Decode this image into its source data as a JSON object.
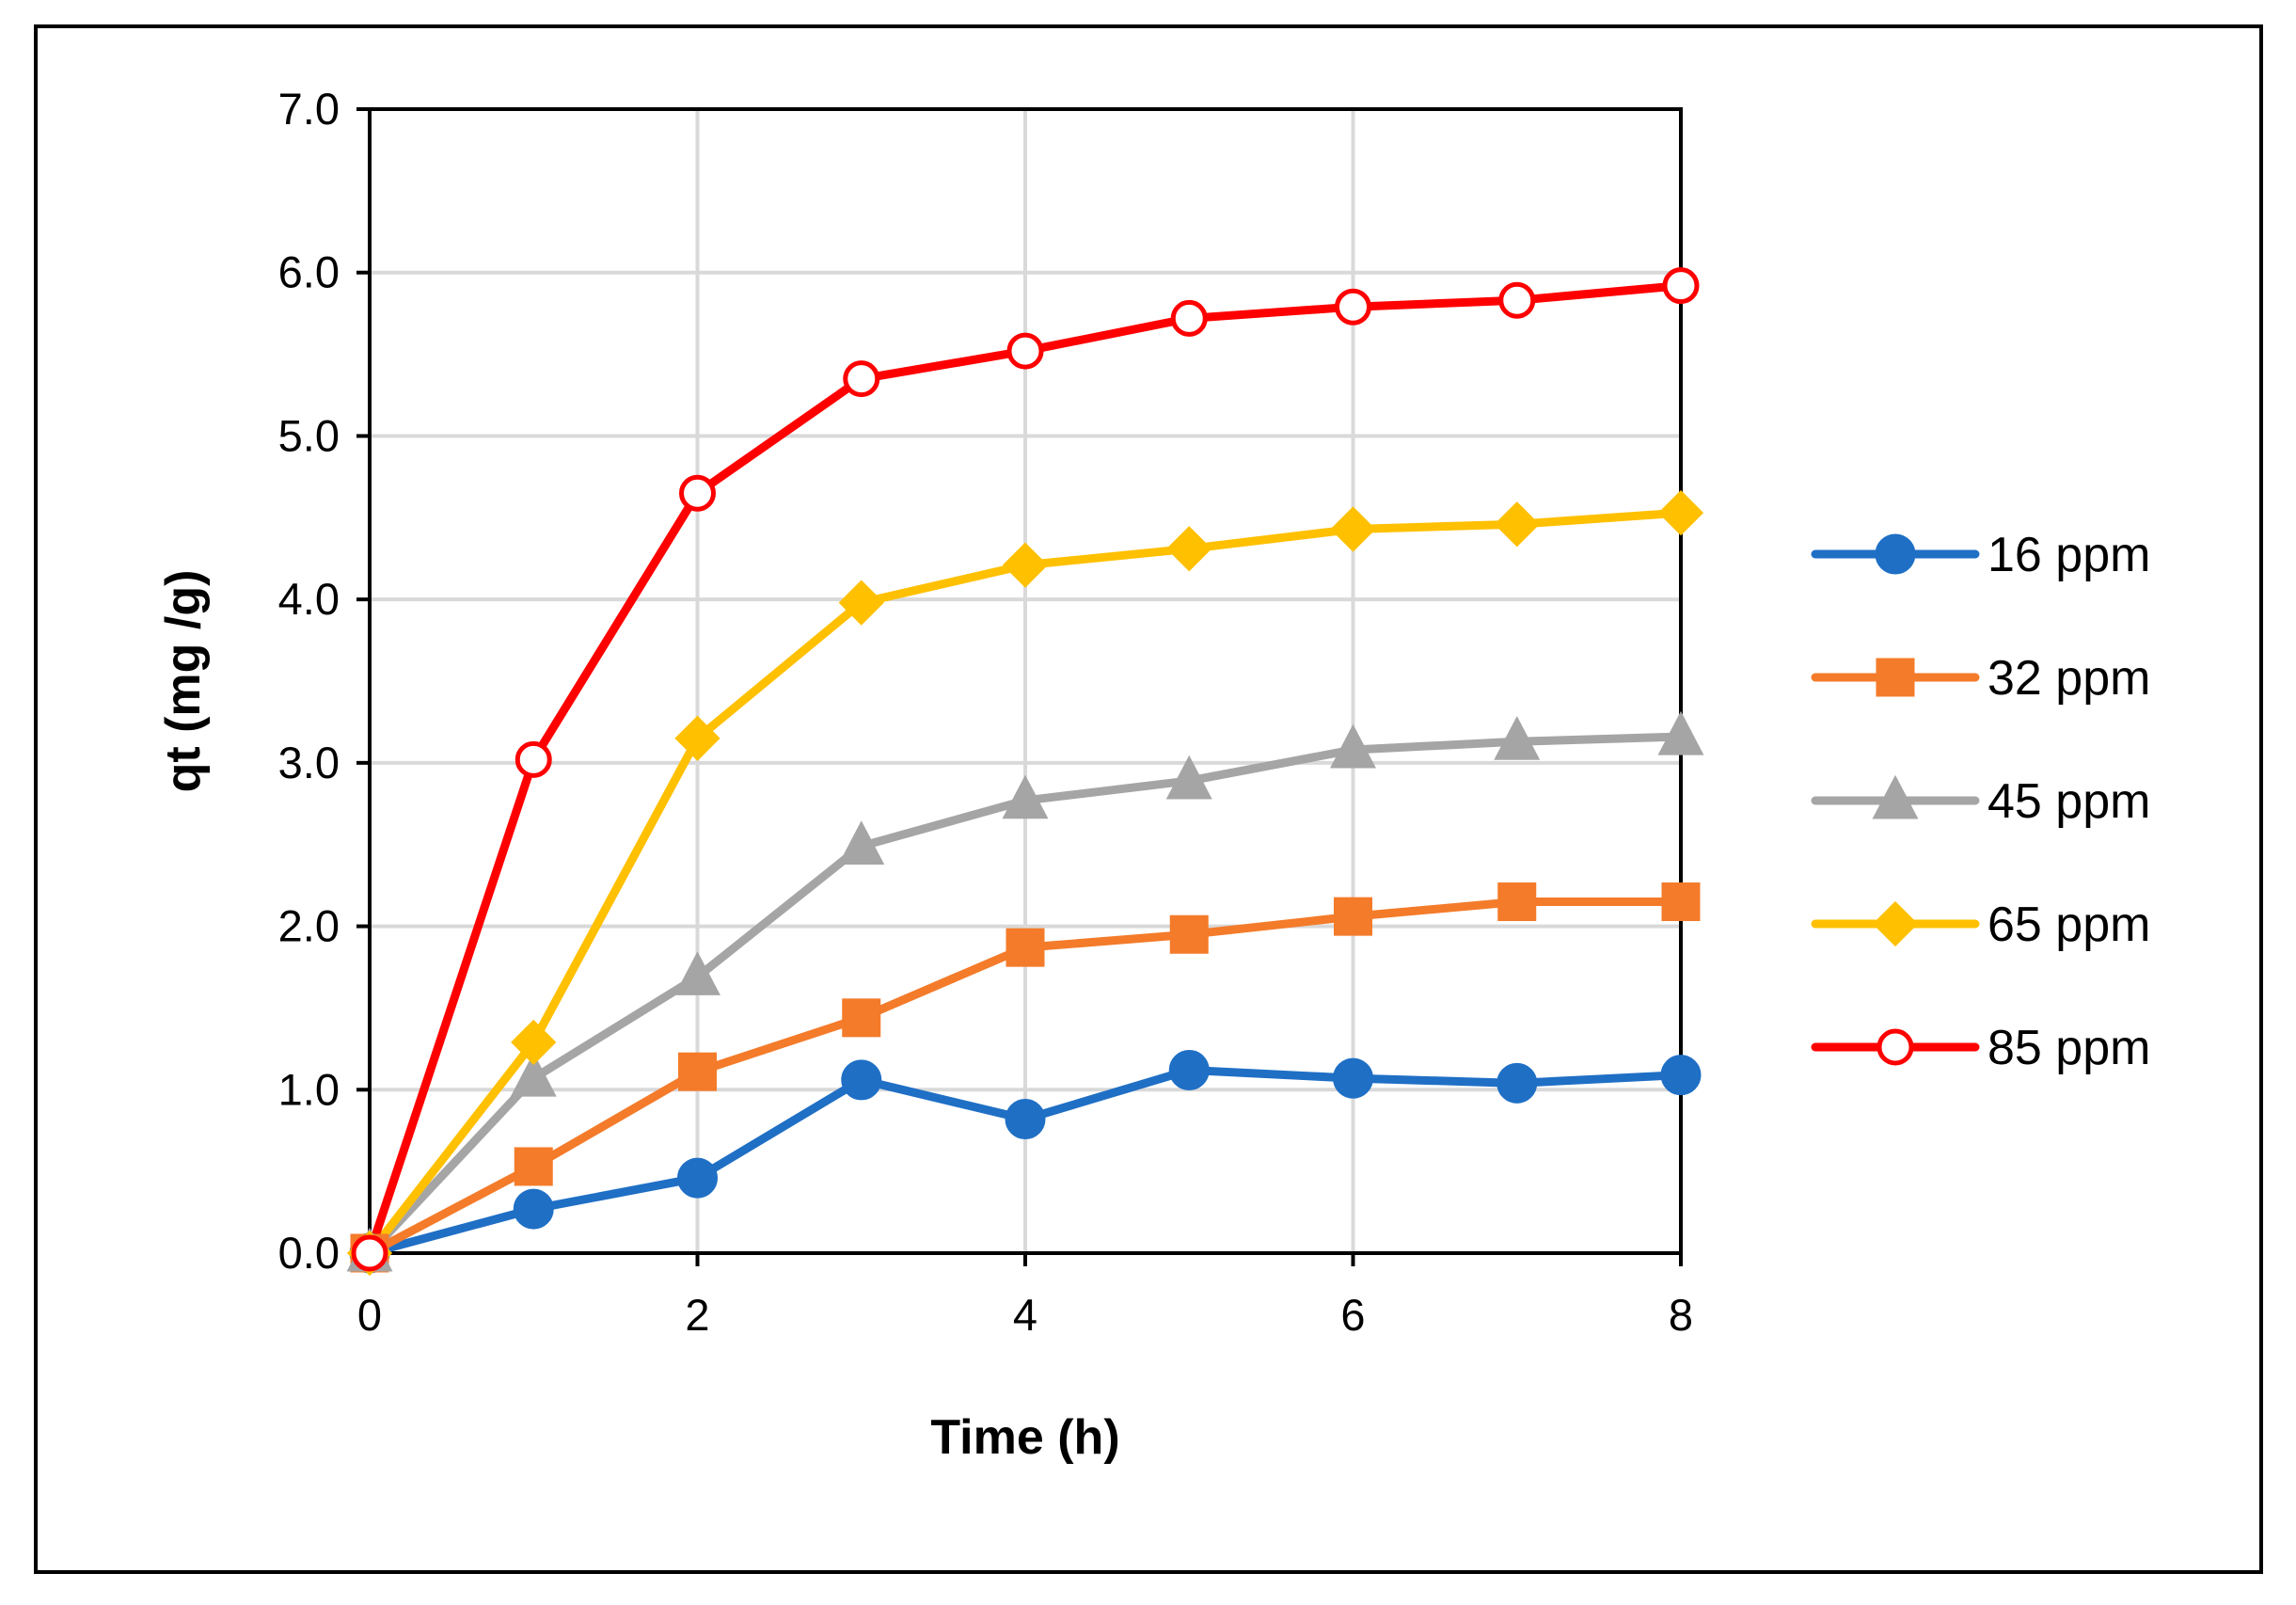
{
  "chart_data": {
    "type": "line",
    "title": "",
    "xlabel": "Time (h)",
    "ylabel": "qt (mg /g)",
    "xlim": [
      0,
      8
    ],
    "ylim": [
      0,
      7
    ],
    "x_ticks": [
      "0",
      "2",
      "4",
      "6",
      "8"
    ],
    "y_ticks": [
      "0.0",
      "1.0",
      "2.0",
      "3.0",
      "4.0",
      "5.0",
      "6.0",
      "7.0"
    ],
    "grid": true,
    "legend_position": "right",
    "x": [
      0,
      1,
      2,
      3,
      4,
      5,
      6,
      7,
      8
    ],
    "series": [
      {
        "name": "16 ppm",
        "color": "#1f6fc5",
        "marker": "circle",
        "values": [
          0.0,
          0.27,
          0.46,
          1.06,
          0.82,
          1.12,
          1.07,
          1.04,
          1.09
        ]
      },
      {
        "name": "32 ppm",
        "color": "#f47b2a",
        "marker": "square",
        "values": [
          0.0,
          0.53,
          1.11,
          1.44,
          1.87,
          1.95,
          2.06,
          2.15,
          2.15
        ]
      },
      {
        "name": "45 ppm",
        "color": "#a5a5a5",
        "marker": "triangle",
        "values": [
          0.0,
          1.07,
          1.69,
          2.49,
          2.77,
          2.89,
          3.08,
          3.13,
          3.16
        ]
      },
      {
        "name": "65 ppm",
        "color": "#ffc000",
        "marker": "diamond",
        "values": [
          0.0,
          1.29,
          3.15,
          3.98,
          4.21,
          4.31,
          4.43,
          4.46,
          4.53
        ]
      },
      {
        "name": "85 ppm",
        "color": "#ff0000",
        "marker": "open-circle",
        "values": [
          0.0,
          3.02,
          4.65,
          5.35,
          5.52,
          5.72,
          5.79,
          5.83,
          5.92
        ]
      }
    ]
  }
}
